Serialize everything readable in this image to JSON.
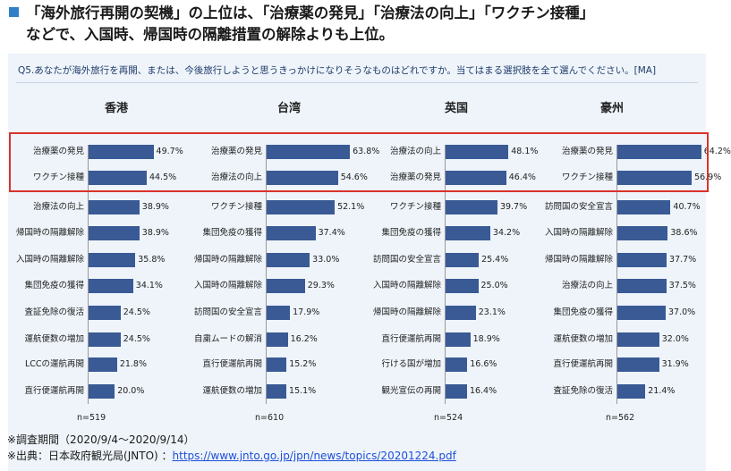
{
  "headline": {
    "line1": "「海外旅行再開の契機」の上位は、「治療薬の発見」「治療法の向上」「ワクチン接種」",
    "line2": "などで、入国時、帰国時の隔離措置の解除よりも上位。"
  },
  "question": "Q5.あなたが海外旅行を再開、または、今後旅行しようと思うきっかけになりそうなものはどれですか。当てはまる選択肢を全て選んでください。[MA]",
  "colors": {
    "bar": "#3a5a95",
    "highlight": "#d9322b",
    "accent": "#2f80c8"
  },
  "chart_data": [
    {
      "type": "bar",
      "orientation": "horizontal",
      "title": "香港",
      "n_label": "n=519",
      "xlim": [
        0,
        100
      ],
      "categories": [
        "治療薬の発見",
        "ワクチン接種",
        "治療法の向上",
        "帰国時の隔離解除",
        "入国時の隔離解除",
        "集団免疫の獲得",
        "査証免除の復活",
        "運航便数の増加",
        "LCCの運航再開",
        "直行便運航再開"
      ],
      "values": [
        49.7,
        44.5,
        38.9,
        38.9,
        35.8,
        34.1,
        24.5,
        24.5,
        21.8,
        20.0
      ],
      "value_labels": [
        "49.7%",
        "44.5%",
        "38.9%",
        "38.9%",
        "35.8%",
        "34.1%",
        "24.5%",
        "24.5%",
        "21.8%",
        "20.0%"
      ]
    },
    {
      "type": "bar",
      "orientation": "horizontal",
      "title": "台湾",
      "n_label": "n=610",
      "xlim": [
        0,
        100
      ],
      "categories": [
        "治療薬の発見",
        "治療法の向上",
        "ワクチン接種",
        "集団免疫の獲得",
        "帰国時の隔離解除",
        "入国時の隔離解除",
        "訪問国の安全宣言",
        "自粛ムードの解消",
        "直行便運航再開",
        "運航便数の増加"
      ],
      "values": [
        63.8,
        54.6,
        52.1,
        37.4,
        33.0,
        29.3,
        17.9,
        16.2,
        15.2,
        15.1
      ],
      "value_labels": [
        "63.8%",
        "54.6%",
        "52.1%",
        "37.4%",
        "33.0%",
        "29.3%",
        "17.9%",
        "16.2%",
        "15.2%",
        "15.1%"
      ]
    },
    {
      "type": "bar",
      "orientation": "horizontal",
      "title": "英国",
      "n_label": "n=524",
      "xlim": [
        0,
        100
      ],
      "categories": [
        "治療法の向上",
        "治療薬の発見",
        "ワクチン接種",
        "集団免疫の獲得",
        "訪問国の安全宣言",
        "入国時の隔離解除",
        "帰国時の隔離解除",
        "直行便運航再開",
        "行ける国が増加",
        "観光宣伝の再開"
      ],
      "values": [
        48.1,
        46.4,
        39.7,
        34.2,
        25.4,
        25.0,
        23.1,
        18.9,
        16.6,
        16.4
      ],
      "value_labels": [
        "48.1%",
        "46.4%",
        "39.7%",
        "34.2%",
        "25.4%",
        "25.0%",
        "23.1%",
        "18.9%",
        "16.6%",
        "16.4%"
      ]
    },
    {
      "type": "bar",
      "orientation": "horizontal",
      "title": "豪州",
      "n_label": "n=562",
      "xlim": [
        0,
        100
      ],
      "categories": [
        "治療薬の発見",
        "ワクチン接種",
        "訪問国の安全宣言",
        "入国時の隔離解除",
        "帰国時の隔離解除",
        "治療法の向上",
        "集団免疫の獲得",
        "運航便数の増加",
        "直行便運航再開",
        "査証免除の復活"
      ],
      "values": [
        64.2,
        56.9,
        40.7,
        38.6,
        37.7,
        37.5,
        37.0,
        32.0,
        31.9,
        21.4
      ],
      "value_labels": [
        "64.2%",
        "56.9%",
        "40.7%",
        "38.6%",
        "37.7%",
        "37.5%",
        "37.0%",
        "32.0%",
        "31.9%",
        "21.4%"
      ]
    }
  ],
  "footer": {
    "period": "※調査期間（2020/9/4～2020/9/14）",
    "source_prefix": "※出典：日本政府観光局(JNTO) ：",
    "source_link": "https://www.jnto.go.jp/jpn/news/topics/20201224.pdf"
  }
}
